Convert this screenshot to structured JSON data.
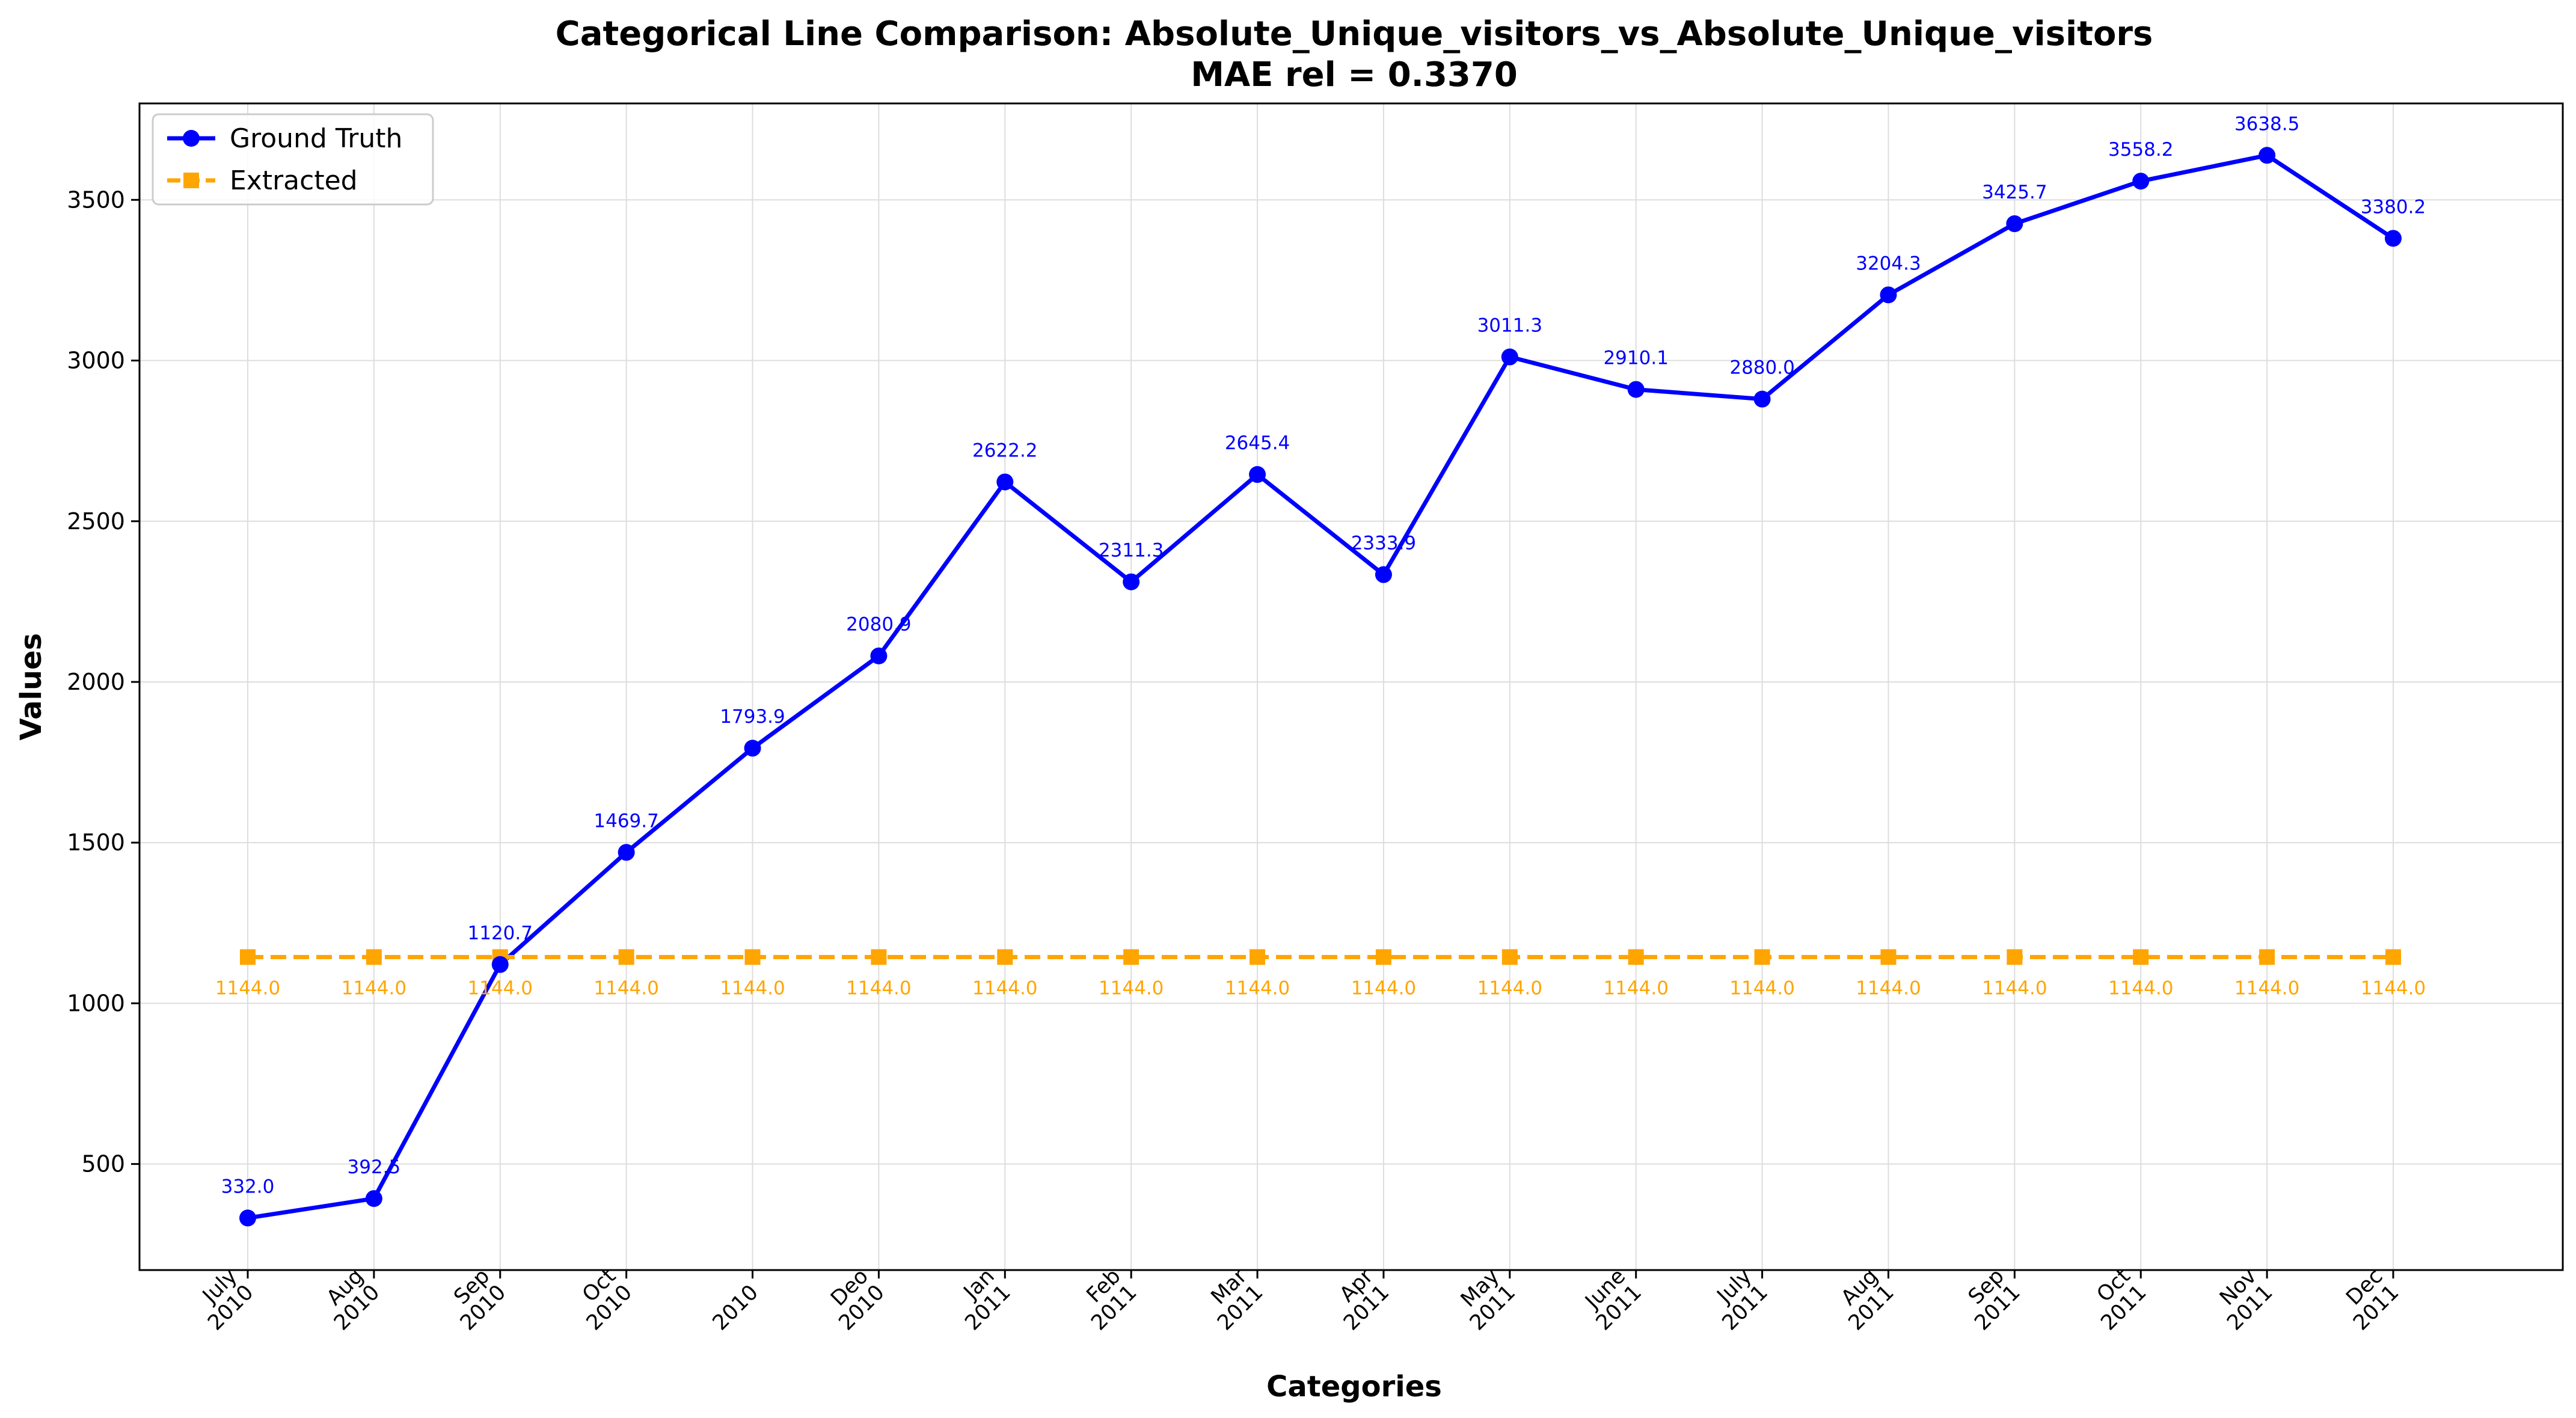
{
  "chart_data": {
    "type": "line",
    "title": "Categorical Line Comparison: Absolute_Unique_visitors_vs_Absolute_Unique_visitors",
    "subtitle": "MAE rel = 0.3370",
    "xlabel": "Categories",
    "ylabel": "Values",
    "categories": [
      [
        "July",
        "2010"
      ],
      [
        "Aug",
        "2010"
      ],
      [
        "Sep",
        "2010"
      ],
      [
        "Oct",
        "2010"
      ],
      [
        "",
        "2010"
      ],
      [
        "Deo",
        "2010"
      ],
      [
        "Jan",
        "2011"
      ],
      [
        "Feb",
        "2011"
      ],
      [
        "Mar",
        "2011"
      ],
      [
        "Apr",
        "2011"
      ],
      [
        "May",
        "2011"
      ],
      [
        "June",
        "2011"
      ],
      [
        "July",
        "2011"
      ],
      [
        "Aug",
        "2011"
      ],
      [
        "Sep",
        "2011"
      ],
      [
        "Oct",
        "2011"
      ],
      [
        "Nov",
        "2011"
      ],
      [
        "Dec",
        "2011"
      ]
    ],
    "ylim": [
      170,
      3800
    ],
    "yticks": [
      500,
      1000,
      1500,
      2000,
      2500,
      3000,
      3500
    ],
    "grid": true,
    "legend_position": "top-left",
    "series": [
      {
        "name": "Ground Truth",
        "color": "#0000ff",
        "marker": "circle",
        "linestyle": "solid",
        "values": [
          332.0,
          392.5,
          1120.7,
          1469.7,
          1793.9,
          2080.9,
          2622.2,
          2311.3,
          2645.4,
          2333.9,
          3011.3,
          2910.1,
          2880.0,
          3204.3,
          3425.7,
          3558.2,
          3638.5,
          3380.2
        ],
        "labels": [
          "332.0",
          "392.5",
          "1120.7",
          "1469.7",
          "1793.9",
          "2080.9",
          "2622.2",
          "2311.3",
          "2645.4",
          "2333.9",
          "3011.3",
          "2910.1",
          "2880.0",
          "3204.3",
          "3425.7",
          "3558.2",
          "3638.5",
          "3380.2"
        ]
      },
      {
        "name": "Extracted",
        "color": "#ffa500",
        "marker": "square",
        "linestyle": "dashed",
        "values": [
          1144.0,
          1144.0,
          1144.0,
          1144.0,
          1144.0,
          1144.0,
          1144.0,
          1144.0,
          1144.0,
          1144.0,
          1144.0,
          1144.0,
          1144.0,
          1144.0,
          1144.0,
          1144.0,
          1144.0,
          1144.0
        ],
        "labels": [
          "1144.0",
          "1144.0",
          "1144.0",
          "1144.0",
          "1144.0",
          "1144.0",
          "1144.0",
          "1144.0",
          "1144.0",
          "1144.0",
          "1144.0",
          "1144.0",
          "1144.0",
          "1144.0",
          "1144.0",
          "1144.0",
          "1144.0",
          "1144.0"
        ]
      }
    ]
  }
}
